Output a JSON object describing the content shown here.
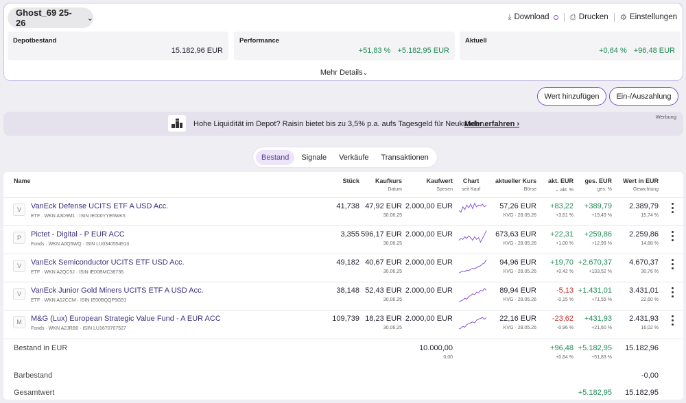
{
  "depot": {
    "name": "Ghost_69 25-26"
  },
  "toolbar": {
    "download": "Download",
    "print": "Drucken",
    "settings": "Einstellungen"
  },
  "summary": {
    "depotbestand": {
      "label": "Depotbestand",
      "value": "15.182,96 EUR"
    },
    "performance": {
      "label": "Performance",
      "pct": "+51,83 %",
      "abs": "+5.182,95 EUR"
    },
    "aktuell": {
      "label": "Aktuell",
      "pct": "+0,64 %",
      "abs": "+96,48 EUR"
    },
    "more": "Mehr Details"
  },
  "actions": {
    "add": "Wert hinzufügen",
    "deposit": "Ein-/Auszahlung"
  },
  "banner": {
    "text": "Hohe Liquidität im Depot? Raisin bietet bis zu 3,5% p.a. aufs Tagesgeld für Neukunden.",
    "link": "Mehr erfahren",
    "tag": "Werbung"
  },
  "tabs": [
    "Bestand",
    "Signale",
    "Verkäufe",
    "Transaktionen"
  ],
  "columns": {
    "name": "Name",
    "stueck": "Stück",
    "kaufkurs": "Kaufkurs",
    "kaufkurs_sub": "Datum",
    "kaufwert": "Kaufwert",
    "kaufwert_sub": "Spesen",
    "chart": "Chart",
    "chart_sub": "seit Kauf",
    "kurs": "aktueller Kurs",
    "kurs_sub": "Börse",
    "akt": "akt. EUR",
    "akt_sub": "akt. %",
    "ges": "ges. EUR",
    "ges_sub": "ges. %",
    "wert": "Wert in EUR",
    "wert_sub": "Gewichtung"
  },
  "rows": [
    {
      "initial": "V",
      "name": "VanEck Defense UCITS ETF A USD Acc.",
      "meta": "ETF · WKN A3D9M1 · ISIN IE000YYE6WK5",
      "stueck": "41,738",
      "kaufkurs": "47,92 EUR",
      "datum": "30.06.25",
      "kaufwert": "2.000,00 EUR",
      "kurs": "57,26 EUR",
      "boerse": "KVG · 28.05.26",
      "akt_eur": "+83,22",
      "akt_pct": "+3,61 %",
      "ges_eur": "+389,79",
      "ges_pct": "+19,49 %",
      "wert": "2.389,79",
      "gewichtung": "15,74 %",
      "spark": [
        0.5,
        0.6,
        0.3,
        0.45,
        0.2,
        0.35,
        0.15,
        0.4,
        0.1,
        0.3,
        0.2,
        0.25,
        0.15,
        0.3,
        0.2
      ]
    },
    {
      "initial": "P",
      "name": "Pictet - Digital - P EUR ACC",
      "meta": "Fonds · WKN A0Q5WQ · ISIN LU0340554913",
      "stueck": "3,355",
      "kaufkurs": "596,17 EUR",
      "datum": "30.06.25",
      "kaufwert": "2.000,00 EUR",
      "kurs": "673,63 EUR",
      "boerse": "KVG · 28.05.26",
      "akt_eur": "+22,31",
      "akt_pct": "+1,00 %",
      "ges_eur": "+259,86",
      "ges_pct": "+12,99 %",
      "wert": "2.259,86",
      "gewichtung": "14,88 %",
      "spark": [
        0.6,
        0.5,
        0.55,
        0.4,
        0.5,
        0.35,
        0.45,
        0.6,
        0.4,
        0.55,
        0.45,
        0.7,
        0.5,
        0.3,
        0.05
      ]
    },
    {
      "initial": "V",
      "name": "VanEck Semiconductor UCITS ETF USD Acc.",
      "meta": "ETF · WKN A2QC5J · ISIN IE00BMC38736",
      "stueck": "49,182",
      "kaufkurs": "40,67 EUR",
      "datum": "30.06.25",
      "kaufwert": "2.000,00 EUR",
      "kurs": "94,96 EUR",
      "boerse": "KVG · 28.05.26",
      "akt_eur": "+19,70",
      "akt_pct": "+0,42 %",
      "ges_eur": "+2.670,37",
      "ges_pct": "+133,52 %",
      "wert": "4.670,37",
      "gewichtung": "30,76 %",
      "spark": [
        0.85,
        0.8,
        0.75,
        0.78,
        0.7,
        0.72,
        0.65,
        0.6,
        0.62,
        0.55,
        0.5,
        0.45,
        0.35,
        0.3,
        0.1
      ]
    },
    {
      "initial": "V",
      "name": "VanEck Junior Gold Miners UCITS ETF A USD Acc.",
      "meta": "ETF · WKN A12CCM · ISIN IE00BQQP9G91",
      "stueck": "38,148",
      "kaufkurs": "52,43 EUR",
      "datum": "30.06.25",
      "kaufwert": "2.000,00 EUR",
      "kurs": "89,94 EUR",
      "boerse": "KVG · 28.05.26",
      "akt_eur": "-5,13",
      "akt_pct": "-0,15 %",
      "ges_eur": "+1.431,01",
      "ges_pct": "+71,55 %",
      "wert": "3.431,01",
      "gewichtung": "22,60 %",
      "spark": [
        0.9,
        0.85,
        0.8,
        0.7,
        0.75,
        0.6,
        0.55,
        0.45,
        0.5,
        0.35,
        0.4,
        0.25,
        0.3,
        0.15,
        0.25
      ]
    },
    {
      "initial": "M",
      "name": "M&G (Lux) European Strategic Value Fund - A EUR ACC",
      "meta": "Fonds · WKN A2JRB0 · ISIN LU1670707527",
      "stueck": "109,739",
      "kaufkurs": "18,23 EUR",
      "datum": "30.06.25",
      "kaufwert": "2.000,00 EUR",
      "kurs": "22,16 EUR",
      "boerse": "KVG · 28.05.26",
      "akt_eur": "-23,62",
      "akt_pct": "-0,96 %",
      "ges_eur": "+431,93",
      "ges_pct": "+21,60 %",
      "wert": "2.431,93",
      "gewichtung": "16,02 %",
      "spark": [
        0.85,
        0.8,
        0.7,
        0.75,
        0.6,
        0.55,
        0.5,
        0.45,
        0.5,
        0.35,
        0.3,
        0.25,
        0.2,
        0.3,
        0.2
      ]
    }
  ],
  "totals": {
    "bestand": {
      "label": "Bestand in EUR",
      "kaufwert": "10.000,00",
      "spesen": "0,00",
      "akt_eur": "+96,48",
      "akt_pct": "+0,64 %",
      "ges_eur": "+5.182,95",
      "ges_pct": "+51,83 %",
      "wert": "15.182,96"
    },
    "bar": {
      "label": "Barbestand",
      "wert": "-0,00"
    },
    "gesamt": {
      "label": "Gesamtwert",
      "ges_eur": "+5.182,95",
      "wert": "15.182,95"
    }
  },
  "colors": {
    "accent": "#7b4fd1",
    "positive": "#1f8a54",
    "negative": "#c4302b",
    "spark": "#8a55d6"
  }
}
